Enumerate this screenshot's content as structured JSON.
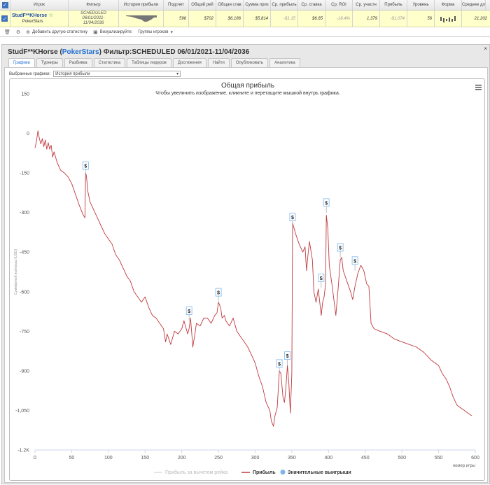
{
  "stats_table": {
    "headers": [
      "Игрок",
      "Фильтр",
      "История прибыли",
      "Подсчет",
      "Общий рей",
      "Общая став",
      "Сумма приз",
      "Ср. прибыль",
      "Ср. ставка",
      "Ср. ROI",
      "Ср. участн",
      "Прибыль",
      "Уровень",
      "Форма",
      "Среднее дл"
    ],
    "player_name": "StudF**KHorse",
    "player_room": "PokerStars",
    "filter_lines": [
      "SCHEDULED",
      "06/01/2021-",
      "11/04/2036"
    ],
    "values": [
      "596",
      "$702",
      "$6,186",
      "$5,814",
      "-$1.15",
      "$6.65",
      "-18.4%",
      "1,379",
      "-$1,074",
      "56",
      "",
      "21,202"
    ]
  },
  "toolbar": {
    "add_stats": "Добавить другую статистику",
    "visualize": "Визуализируйте:",
    "player_groups": "Группы игроков"
  },
  "panel": {
    "title_prefix": "StudF**KHorse (",
    "room": "PokerStars",
    "title_suffix": ") Фильтр:SCHEDULED 06/01/2021-11/04/2036",
    "close": "×",
    "tabs": [
      "Графики",
      "Турниры",
      "Разбивка",
      "Статистика",
      "Таблицы лидеров",
      "Достижения",
      "Найти",
      "Опубликовать",
      "Аналитика"
    ],
    "selector_label": "Выбранные графики:",
    "selector_value": "История прибыли"
  },
  "chart_data": {
    "type": "line",
    "title": "Общая прибыль",
    "subtitle": "Чтобы увеличить изображение, кликните и перетащите мышкой внутрь графика.",
    "xlabel": "номер игры",
    "ylabel": "Суммарный выигрыш (USD)",
    "xlim": [
      0,
      600
    ],
    "ylim": [
      -1200,
      150
    ],
    "x_ticks": [
      0,
      50,
      100,
      150,
      200,
      250,
      300,
      350,
      400,
      450,
      500,
      550,
      600
    ],
    "y_ticks": [
      150,
      0,
      -150,
      -300,
      -450,
      -600,
      -750,
      -900,
      -1050,
      -1200
    ],
    "y_tick_labels": [
      "150",
      "0",
      "-150",
      "-300",
      "-450",
      "-600",
      "-750",
      "-900",
      "-1,050",
      "-1.2K"
    ],
    "legend_position": "bottom",
    "series": [
      {
        "name": "Прибыль за вычетом рейка",
        "color": "#cccccc",
        "visible": false
      },
      {
        "name": "Прибыль",
        "color": "#c0393f",
        "points": [
          [
            0,
            -55
          ],
          [
            2,
            -30
          ],
          [
            4,
            10
          ],
          [
            6,
            -20
          ],
          [
            8,
            -40
          ],
          [
            10,
            -20
          ],
          [
            12,
            -50
          ],
          [
            14,
            -25
          ],
          [
            16,
            -60
          ],
          [
            18,
            -35
          ],
          [
            20,
            -60
          ],
          [
            22,
            -45
          ],
          [
            24,
            -90
          ],
          [
            26,
            -70
          ],
          [
            30,
            -110
          ],
          [
            35,
            -140
          ],
          [
            40,
            -150
          ],
          [
            45,
            -165
          ],
          [
            50,
            -190
          ],
          [
            55,
            -230
          ],
          [
            60,
            -270
          ],
          [
            65,
            -305
          ],
          [
            68,
            -320
          ],
          [
            69,
            -150
          ],
          [
            70,
            -160
          ],
          [
            72,
            -220
          ],
          [
            75,
            -260
          ],
          [
            80,
            -290
          ],
          [
            85,
            -320
          ],
          [
            90,
            -350
          ],
          [
            95,
            -380
          ],
          [
            100,
            -400
          ],
          [
            105,
            -420
          ],
          [
            110,
            -460
          ],
          [
            115,
            -480
          ],
          [
            120,
            -510
          ],
          [
            125,
            -540
          ],
          [
            130,
            -560
          ],
          [
            135,
            -600
          ],
          [
            140,
            -620
          ],
          [
            145,
            -640
          ],
          [
            150,
            -620
          ],
          [
            155,
            -660
          ],
          [
            160,
            -690
          ],
          [
            165,
            -700
          ],
          [
            170,
            -720
          ],
          [
            175,
            -740
          ],
          [
            178,
            -790
          ],
          [
            180,
            -760
          ],
          [
            185,
            -800
          ],
          [
            190,
            -750
          ],
          [
            195,
            -760
          ],
          [
            200,
            -740
          ],
          [
            203,
            -710
          ],
          [
            205,
            -730
          ],
          [
            208,
            -760
          ],
          [
            210,
            -740
          ],
          [
            212,
            -700
          ],
          [
            214,
            -770
          ],
          [
            215,
            -810
          ],
          [
            218,
            -760
          ],
          [
            220,
            -720
          ],
          [
            225,
            -730
          ],
          [
            230,
            -700
          ],
          [
            235,
            -700
          ],
          [
            240,
            -720
          ],
          [
            245,
            -690
          ],
          [
            248,
            -680
          ],
          [
            250,
            -640
          ],
          [
            253,
            -660
          ],
          [
            255,
            -700
          ],
          [
            258,
            -690
          ],
          [
            260,
            -710
          ],
          [
            265,
            -730
          ],
          [
            270,
            -700
          ],
          [
            275,
            -750
          ],
          [
            280,
            -770
          ],
          [
            285,
            -790
          ],
          [
            290,
            -810
          ],
          [
            295,
            -840
          ],
          [
            300,
            -870
          ],
          [
            305,
            -920
          ],
          [
            310,
            -960
          ],
          [
            315,
            -1020
          ],
          [
            320,
            -1050
          ],
          [
            322,
            -1090
          ],
          [
            325,
            -1110
          ],
          [
            327,
            -1070
          ],
          [
            330,
            -1040
          ],
          [
            333,
            -900
          ],
          [
            335,
            -910
          ],
          [
            338,
            -1000
          ],
          [
            340,
            -1020
          ],
          [
            342,
            -960
          ],
          [
            344,
            -880
          ],
          [
            346,
            -950
          ],
          [
            348,
            -1060
          ],
          [
            350,
            -910
          ],
          [
            351,
            -340
          ],
          [
            355,
            -380
          ],
          [
            360,
            -420
          ],
          [
            365,
            -450
          ],
          [
            368,
            -430
          ],
          [
            370,
            -520
          ],
          [
            372,
            -460
          ],
          [
            374,
            -410
          ],
          [
            378,
            -480
          ],
          [
            380,
            -600
          ],
          [
            383,
            -640
          ],
          [
            386,
            -590
          ],
          [
            390,
            -690
          ],
          [
            392,
            -640
          ],
          [
            394,
            -620
          ],
          [
            396,
            -570
          ],
          [
            397,
            -310
          ],
          [
            399,
            -360
          ],
          [
            401,
            -500
          ],
          [
            405,
            -580
          ],
          [
            410,
            -690
          ],
          [
            413,
            -590
          ],
          [
            416,
            -480
          ],
          [
            418,
            -470
          ],
          [
            420,
            -520
          ],
          [
            425,
            -560
          ],
          [
            430,
            -600
          ],
          [
            433,
            -630
          ],
          [
            436,
            -580
          ],
          [
            440,
            -530
          ],
          [
            444,
            -500
          ],
          [
            448,
            -520
          ],
          [
            452,
            -570
          ],
          [
            455,
            -580
          ],
          [
            458,
            -720
          ],
          [
            462,
            -740
          ],
          [
            470,
            -750
          ],
          [
            480,
            -760
          ],
          [
            490,
            -780
          ],
          [
            500,
            -790
          ],
          [
            510,
            -800
          ],
          [
            520,
            -810
          ],
          [
            530,
            -830
          ],
          [
            540,
            -860
          ],
          [
            550,
            -880
          ],
          [
            555,
            -910
          ],
          [
            560,
            -930
          ],
          [
            565,
            -960
          ],
          [
            570,
            -1000
          ],
          [
            575,
            -1030
          ],
          [
            580,
            -1040
          ],
          [
            585,
            -1050
          ],
          [
            590,
            -1060
          ],
          [
            595,
            -1070
          ]
        ]
      },
      {
        "name": "Значительные выигрыши",
        "color": "#7cb5ec",
        "marker": "$",
        "points": [
          [
            69,
            -150
          ],
          [
            210,
            -700
          ],
          [
            250,
            -630
          ],
          [
            333,
            -900
          ],
          [
            344,
            -870
          ],
          [
            351,
            -345
          ],
          [
            390,
            -575
          ],
          [
            397,
            -290
          ],
          [
            416,
            -460
          ],
          [
            436,
            -510
          ]
        ]
      }
    ]
  }
}
